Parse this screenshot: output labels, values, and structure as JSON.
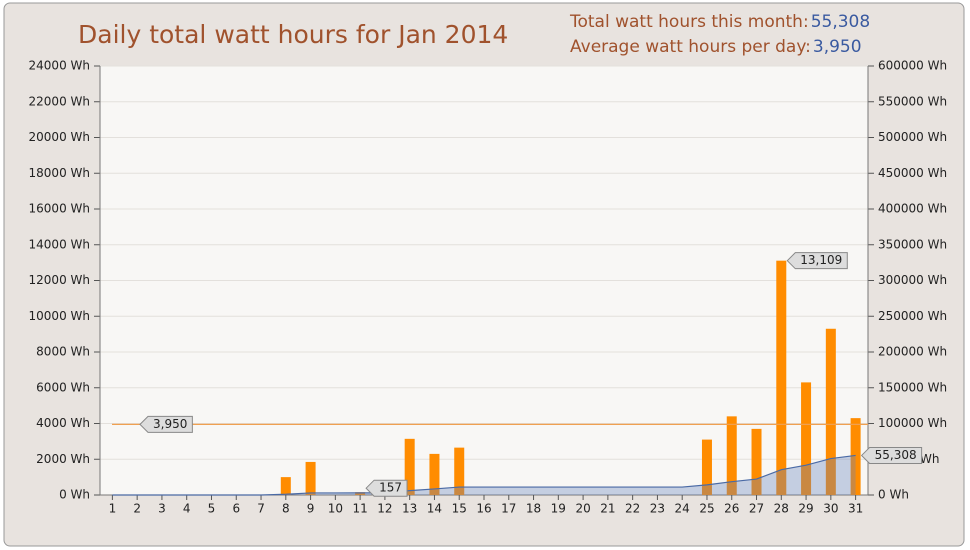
{
  "chart_data": {
    "type": "bar",
    "title": "Daily total watt hours for Jan 2014",
    "summary": [
      {
        "label": "Total watt hours this month:",
        "value": 55308,
        "value_label": "55,308"
      },
      {
        "label": "Average watt hours per day:",
        "value": 3950,
        "value_label": "3,950"
      }
    ],
    "categories": [
      "1",
      "2",
      "3",
      "4",
      "5",
      "6",
      "7",
      "8",
      "9",
      "10",
      "11",
      "12",
      "13",
      "14",
      "15",
      "16",
      "17",
      "18",
      "19",
      "20",
      "21",
      "22",
      "23",
      "24",
      "25",
      "26",
      "27",
      "28",
      "29",
      "30",
      "31"
    ],
    "series": [
      {
        "type": "bar",
        "color": "#ff8c00",
        "values": [
          0,
          0,
          0,
          0,
          0,
          0,
          0,
          1000,
          1850,
          0,
          157,
          0,
          3142,
          2300,
          2650,
          0,
          0,
          0,
          0,
          0,
          0,
          0,
          0,
          0,
          3100,
          4400,
          3700,
          13109,
          6300,
          9300,
          4300
        ],
        "value_labels": [
          null,
          null,
          null,
          null,
          null,
          null,
          null,
          null,
          null,
          null,
          "157",
          null,
          null,
          null,
          null,
          null,
          null,
          null,
          null,
          null,
          null,
          null,
          null,
          null,
          null,
          null,
          null,
          "13,109",
          null,
          null,
          null
        ]
      },
      {
        "type": "area",
        "axis": "y2",
        "color": "#4a6aa5",
        "values": [
          0,
          0,
          0,
          0,
          0,
          0,
          0,
          1000,
          2850,
          2850,
          3007,
          3007,
          6149,
          8449,
          11099,
          11099,
          11099,
          11099,
          11099,
          11099,
          11099,
          11099,
          11099,
          11099,
          14199,
          18599,
          22299,
          35408,
          41708,
          51008,
          55308
        ],
        "value_labels": [
          null,
          null,
          null,
          null,
          null,
          null,
          null,
          null,
          null,
          null,
          null,
          null,
          null,
          null,
          null,
          null,
          null,
          null,
          null,
          null,
          null,
          null,
          null,
          null,
          null,
          null,
          null,
          null,
          null,
          null,
          "55,308"
        ]
      }
    ],
    "average": {
      "value": 3950,
      "label": "3,950",
      "color": "#f0a050"
    },
    "ylim": [
      0,
      24000
    ],
    "yticks": [
      {
        "value": 0,
        "label": "0 Wh"
      },
      {
        "value": 2000,
        "label": "2000 Wh"
      },
      {
        "value": 4000,
        "label": "4000 Wh"
      },
      {
        "value": 6000,
        "label": "6000 Wh"
      },
      {
        "value": 8000,
        "label": "8000 Wh"
      },
      {
        "value": 10000,
        "label": "10000 Wh"
      },
      {
        "value": 12000,
        "label": "12000 Wh"
      },
      {
        "value": 14000,
        "label": "14000 Wh"
      },
      {
        "value": 16000,
        "label": "16000 Wh"
      },
      {
        "value": 18000,
        "label": "18000 Wh"
      },
      {
        "value": 20000,
        "label": "20000 Wh"
      },
      {
        "value": 22000,
        "label": "22000 Wh"
      },
      {
        "value": 24000,
        "label": "24000 Wh"
      }
    ],
    "y2lim": [
      0,
      600000
    ],
    "y2ticks": [
      {
        "value": 0,
        "label": "0 Wh"
      },
      {
        "value": 50000,
        "label": "50000 Wh"
      },
      {
        "value": 100000,
        "label": "100000 Wh"
      },
      {
        "value": 150000,
        "label": "150000 Wh"
      },
      {
        "value": 200000,
        "label": "200000 Wh"
      },
      {
        "value": 250000,
        "label": "250000 Wh"
      },
      {
        "value": 300000,
        "label": "300000 Wh"
      },
      {
        "value": 350000,
        "label": "350000 Wh"
      },
      {
        "value": 400000,
        "label": "400000 Wh"
      },
      {
        "value": 450000,
        "label": "450000 Wh"
      },
      {
        "value": 500000,
        "label": "500000 Wh"
      },
      {
        "value": 550000,
        "label": "550000 Wh"
      },
      {
        "value": 600000,
        "label": "600000 Wh"
      }
    ],
    "grid": true
  }
}
